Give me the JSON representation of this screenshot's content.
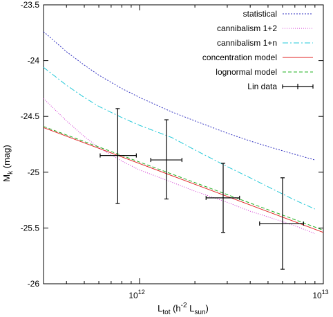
{
  "chart_data": {
    "type": "line",
    "xscale": "log",
    "xlim": [
      300000000000.0,
      10000000000000.0
    ],
    "ylim": [
      -26,
      -23.5
    ],
    "yreversed": true,
    "xlabel": {
      "main": "L",
      "sub": "tot",
      "mid": " (h",
      "sup": "-2",
      "mid2": " L",
      "sub2": "sun",
      "end": ")"
    },
    "ylabel": {
      "main": "M",
      "sub": "k",
      "end": " (mag)"
    },
    "xticks": [
      {
        "value": 1000000000000.0,
        "base": "10",
        "exp": "12"
      },
      {
        "value": 10000000000000.0,
        "base": "10",
        "exp": "13"
      }
    ],
    "yticks": [
      -23.5,
      -24,
      -24.5,
      -25,
      -25.5,
      -26
    ],
    "ytick_labels": [
      "-23.5",
      "-24",
      "-24.5",
      "-25",
      "-25.5",
      "-26"
    ],
    "grid": false,
    "legend_position": "top-right",
    "series": [
      {
        "name": "statistical",
        "color": "#3030c0",
        "dash": "2,2",
        "x": [
          300000000000.0,
          400000000000.0,
          500000000000.0,
          600000000000.0,
          800000000000.0,
          1000000000000.0,
          1500000000000.0,
          2000000000000.0,
          3000000000000.0,
          4000000000000.0,
          5000000000000.0,
          7000000000000.0,
          9000000000000.0
        ],
        "y": [
          -23.74,
          -23.92,
          -24.04,
          -24.13,
          -24.25,
          -24.33,
          -24.46,
          -24.54,
          -24.65,
          -24.72,
          -24.77,
          -24.84,
          -24.89
        ]
      },
      {
        "name": "cannibalism 1+2",
        "color": "#d030d0",
        "dash": "1,2",
        "x": [
          300000000000.0,
          400000000000.0,
          500000000000.0,
          600000000000.0,
          800000000000.0,
          1000000000000.0,
          1500000000000.0,
          2000000000000.0,
          3000000000000.0,
          4000000000000.0,
          5000000000000.0,
          7000000000000.0,
          9000000000000.0
        ],
        "y": [
          -24.34,
          -24.54,
          -24.68,
          -24.78,
          -24.9,
          -24.98,
          -25.09,
          -25.17,
          -25.27,
          -25.35,
          -25.4,
          -25.48,
          -25.55
        ]
      },
      {
        "name": "cannibalism 1+n",
        "color": "#20c8d8",
        "dash": "8,3,2,3",
        "x": [
          300000000000.0,
          400000000000.0,
          500000000000.0,
          600000000000.0,
          800000000000.0,
          1000000000000.0,
          1500000000000.0,
          2000000000000.0,
          3000000000000.0,
          4000000000000.0,
          5000000000000.0,
          7000000000000.0,
          9000000000000.0
        ],
        "y": [
          -24.06,
          -24.22,
          -24.33,
          -24.41,
          -24.51,
          -24.58,
          -24.69,
          -24.8,
          -24.95,
          -25.05,
          -25.13,
          -25.25,
          -25.33
        ]
      },
      {
        "name": "concentration model",
        "color": "#e02020",
        "dash": "",
        "x": [
          300000000000.0,
          10000000000000.0
        ],
        "y": [
          -24.6,
          -25.54
        ]
      },
      {
        "name": "lognormal model",
        "color": "#20b020",
        "dash": "5,3",
        "x": [
          300000000000.0,
          10000000000000.0
        ],
        "y": [
          -24.59,
          -25.52
        ]
      }
    ],
    "errorbar_series": {
      "name": "Lin data",
      "color": "#000000",
      "points": [
        {
          "x": 760000000000.0,
          "y": -24.85,
          "xlo": 610000000000.0,
          "xhi": 960000000000.0,
          "ylo": -24.43,
          "yhi": -25.28
        },
        {
          "x": 1400000000000.0,
          "y": -24.89,
          "xlo": 1150000000000.0,
          "xhi": 1700000000000.0,
          "ylo": -24.53,
          "yhi": -25.24
        },
        {
          "x": 2850000000000.0,
          "y": -25.23,
          "xlo": 2300000000000.0,
          "xhi": 3500000000000.0,
          "ylo": -24.92,
          "yhi": -25.54
        },
        {
          "x": 6000000000000.0,
          "y": -25.46,
          "xlo": 4500000000000.0,
          "xhi": 7800000000000.0,
          "ylo": -25.05,
          "yhi": -25.87
        }
      ]
    }
  }
}
